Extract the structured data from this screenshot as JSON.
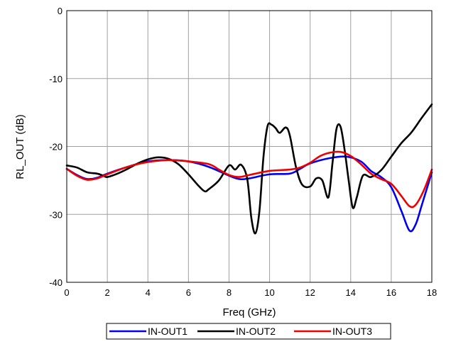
{
  "chart_data": {
    "type": "line",
    "title": "",
    "xlabel": "Freq (GHz)",
    "ylabel": "RL_OUT (dB)",
    "xlim": [
      0,
      18
    ],
    "ylim": [
      -40,
      0
    ],
    "xticks": [
      0,
      2,
      4,
      6,
      8,
      10,
      12,
      14,
      16,
      18
    ],
    "yticks": [
      0,
      -10,
      -20,
      -30,
      -40
    ],
    "grid": true,
    "legend_position": "bottom",
    "series": [
      {
        "name": "IN-OUT1",
        "color": "#0000ee",
        "points": [
          [
            0,
            -23.3
          ],
          [
            0.5,
            -24.2
          ],
          [
            1,
            -24.8
          ],
          [
            1.5,
            -24.6
          ],
          [
            2,
            -24.0
          ],
          [
            3,
            -23.0
          ],
          [
            4,
            -22.2
          ],
          [
            5,
            -22.0
          ],
          [
            6,
            -22.2
          ],
          [
            7,
            -23.0
          ],
          [
            8,
            -24.3
          ],
          [
            8.5,
            -24.8
          ],
          [
            9,
            -24.7
          ],
          [
            10,
            -24.1
          ],
          [
            11,
            -24.0
          ],
          [
            11.5,
            -23.3
          ],
          [
            12,
            -22.5
          ],
          [
            13,
            -21.7
          ],
          [
            13.8,
            -21.5
          ],
          [
            14.5,
            -22.2
          ],
          [
            15,
            -23.6
          ],
          [
            15.5,
            -24.5
          ],
          [
            16,
            -26.0
          ],
          [
            16.5,
            -29.5
          ],
          [
            16.9,
            -32.4
          ],
          [
            17.2,
            -31.5
          ],
          [
            17.5,
            -28.7
          ],
          [
            18,
            -23.8
          ]
        ]
      },
      {
        "name": "IN-OUT2",
        "color": "#000000",
        "points": [
          [
            0,
            -22.8
          ],
          [
            0.5,
            -23.1
          ],
          [
            1,
            -23.8
          ],
          [
            1.5,
            -24.0
          ],
          [
            1.8,
            -24.3
          ],
          [
            2,
            -24.5
          ],
          [
            2.5,
            -24.0
          ],
          [
            3,
            -23.3
          ],
          [
            3.5,
            -22.5
          ],
          [
            4,
            -21.9
          ],
          [
            4.5,
            -21.6
          ],
          [
            5,
            -21.8
          ],
          [
            5.5,
            -22.6
          ],
          [
            6,
            -24.1
          ],
          [
            6.5,
            -25.8
          ],
          [
            6.8,
            -26.6
          ],
          [
            7,
            -26.3
          ],
          [
            7.5,
            -25.0
          ],
          [
            8,
            -22.8
          ],
          [
            8.3,
            -23.4
          ],
          [
            8.6,
            -22.7
          ],
          [
            8.9,
            -24.8
          ],
          [
            9.1,
            -30.5
          ],
          [
            9.3,
            -32.8
          ],
          [
            9.5,
            -29.5
          ],
          [
            9.7,
            -21.5
          ],
          [
            9.9,
            -17.0
          ],
          [
            10.1,
            -16.8
          ],
          [
            10.3,
            -17.3
          ],
          [
            10.5,
            -18.0
          ],
          [
            10.8,
            -17.2
          ],
          [
            11.0,
            -18.4
          ],
          [
            11.3,
            -23.0
          ],
          [
            11.6,
            -25.6
          ],
          [
            12.0,
            -25.9
          ],
          [
            12.3,
            -24.7
          ],
          [
            12.6,
            -25.0
          ],
          [
            12.9,
            -27.5
          ],
          [
            13.1,
            -22.5
          ],
          [
            13.3,
            -17.4
          ],
          [
            13.5,
            -17.1
          ],
          [
            13.7,
            -20.5
          ],
          [
            13.9,
            -25.0
          ],
          [
            14.1,
            -29.0
          ],
          [
            14.3,
            -27.5
          ],
          [
            14.6,
            -24.3
          ],
          [
            15.0,
            -24.5
          ],
          [
            15.5,
            -23.5
          ],
          [
            16,
            -21.5
          ],
          [
            16.5,
            -19.5
          ],
          [
            17,
            -17.9
          ],
          [
            17.5,
            -15.8
          ],
          [
            18,
            -13.8
          ]
        ]
      },
      {
        "name": "IN-OUT3",
        "color": "#ee0000",
        "points": [
          [
            0,
            -23.3
          ],
          [
            0.5,
            -24.3
          ],
          [
            1,
            -24.9
          ],
          [
            1.5,
            -24.7
          ],
          [
            2,
            -24.1
          ],
          [
            3,
            -23.0
          ],
          [
            4,
            -22.3
          ],
          [
            5,
            -22.0
          ],
          [
            6,
            -22.2
          ],
          [
            7,
            -22.6
          ],
          [
            7.5,
            -23.4
          ],
          [
            8,
            -24.2
          ],
          [
            8.5,
            -24.5
          ],
          [
            9,
            -24.2
          ],
          [
            10,
            -23.6
          ],
          [
            11,
            -23.4
          ],
          [
            11.5,
            -23.1
          ],
          [
            12,
            -22.4
          ],
          [
            12.5,
            -21.4
          ],
          [
            13,
            -20.9
          ],
          [
            13.5,
            -20.8
          ],
          [
            14,
            -21.4
          ],
          [
            14.5,
            -22.6
          ],
          [
            15,
            -24.0
          ],
          [
            15.5,
            -24.8
          ],
          [
            16,
            -25.5
          ],
          [
            16.5,
            -27.3
          ],
          [
            16.9,
            -28.8
          ],
          [
            17.2,
            -28.6
          ],
          [
            17.6,
            -26.5
          ],
          [
            18,
            -23.4
          ]
        ]
      }
    ]
  }
}
